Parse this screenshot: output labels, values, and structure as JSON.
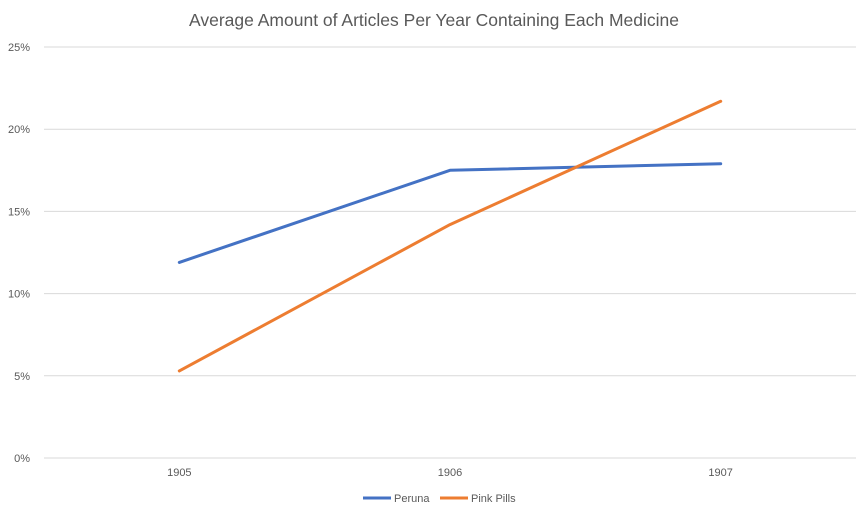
{
  "chart_data": {
    "type": "line",
    "title": "Average Amount of Articles Per Year Containing Each Medicine",
    "categories": [
      "1905",
      "1906",
      "1907"
    ],
    "series": [
      {
        "name": "Peruna",
        "values": [
          11.9,
          17.5,
          17.9
        ],
        "color": "#4472C4"
      },
      {
        "name": "Pink Pills",
        "values": [
          5.3,
          14.2,
          21.7
        ],
        "color": "#ED7D31"
      }
    ],
    "ylim": [
      0,
      25
    ],
    "yticks": [
      0,
      5,
      10,
      15,
      20,
      25
    ],
    "ytick_labels": [
      "0%",
      "5%",
      "10%",
      "15%",
      "20%",
      "25%"
    ],
    "grid": true,
    "legend_position": "bottom",
    "colors": {
      "gridline": "#D9D9D9",
      "text": "#595959"
    }
  }
}
